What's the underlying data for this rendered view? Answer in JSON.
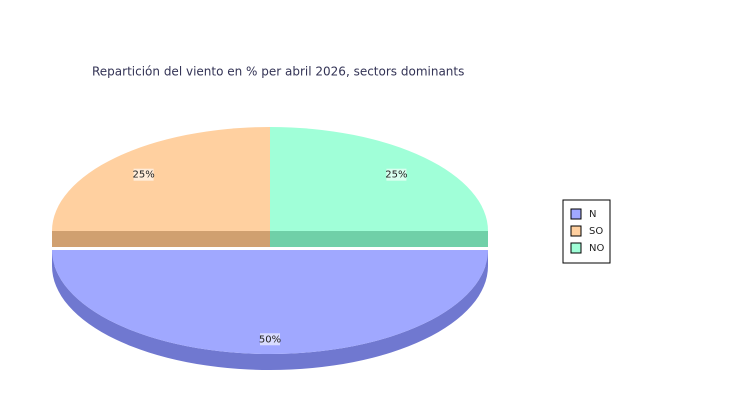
{
  "chart_data": {
    "type": "pie",
    "title": "Repartición del viento en % per abril 2026, sectors dominants",
    "categories": [
      "N",
      "SO",
      "NO"
    ],
    "values": [
      50,
      25,
      25
    ],
    "value_labels": [
      "50%",
      "25%",
      "25%"
    ],
    "colors": [
      "#a0a8ff",
      "#ffd0a0",
      "#a0ffd8"
    ],
    "side_colors": [
      "#7078d0",
      "#d0a070",
      "#70d0a8"
    ],
    "legend": "right"
  }
}
